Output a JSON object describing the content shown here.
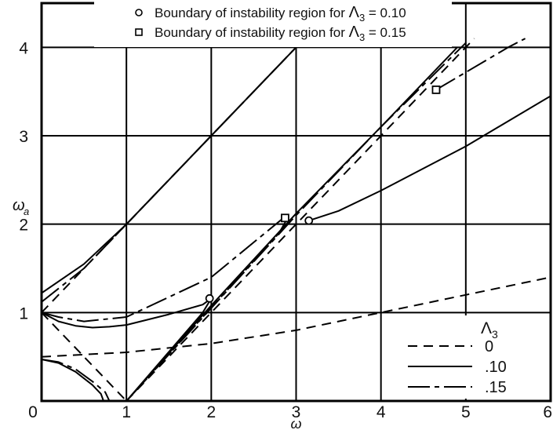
{
  "chart_data": {
    "type": "line",
    "title": "",
    "xlabel": "ω",
    "ylabel": "ω",
    "ylabel_sub": "a",
    "xlim": [
      0,
      6
    ],
    "ylim": [
      0,
      4.5
    ],
    "x_ticks": [
      "0",
      "1",
      "2",
      "3",
      "4",
      "5",
      "6"
    ],
    "y_ticks": [
      "1",
      "2",
      "3",
      "4"
    ],
    "grid": true,
    "annotations": [
      {
        "marker": "○",
        "text": "Boundary of instability region for ",
        "symbol": "Λ",
        "sub": "3",
        "value": " = 0.10"
      },
      {
        "marker": "□",
        "text": "Boundary of instability region for ",
        "symbol": "Λ",
        "sub": "3",
        "value": " = 0.15"
      }
    ],
    "legend": {
      "title_symbol": "Λ",
      "title_sub": "3",
      "placement": "bottom-right",
      "entries": [
        {
          "label": "0",
          "style": "dashed"
        },
        {
          "label": ".10",
          "style": "solid"
        },
        {
          "label": ".15",
          "style": "long-dash"
        }
      ]
    },
    "series": [
      {
        "group": "0",
        "style": "dashed",
        "points": [
          [
            0,
            1
          ],
          [
            1,
            2
          ],
          [
            2,
            3
          ],
          [
            3,
            4
          ],
          [
            3.2,
            4.2
          ]
        ]
      },
      {
        "group": "0",
        "style": "dashed",
        "points": [
          [
            0,
            1
          ],
          [
            1,
            0
          ]
        ]
      },
      {
        "group": "0",
        "style": "dashed",
        "points": [
          [
            1,
            0
          ],
          [
            2,
            1
          ],
          [
            3,
            2
          ],
          [
            4,
            3
          ],
          [
            5,
            4
          ],
          [
            5.1,
            4.1
          ]
        ]
      },
      {
        "group": "0",
        "style": "dashed",
        "points": [
          [
            0,
            0.5
          ],
          [
            1,
            0.55
          ],
          [
            2,
            0.65
          ],
          [
            3,
            0.8
          ],
          [
            4,
            1.0
          ],
          [
            5,
            1.2
          ],
          [
            6,
            1.4
          ]
        ]
      },
      {
        "group": ".10",
        "style": "solid",
        "points": [
          [
            0,
            1.22
          ],
          [
            0.5,
            1.55
          ],
          [
            1,
            2
          ],
          [
            2,
            3
          ],
          [
            3,
            4
          ],
          [
            3.1,
            4.1
          ]
        ]
      },
      {
        "group": ".10",
        "style": "solid",
        "points": [
          [
            0,
            1
          ],
          [
            0.2,
            0.9
          ],
          [
            0.4,
            0.85
          ],
          [
            0.6,
            0.83
          ],
          [
            0.8,
            0.84
          ],
          [
            1,
            0.86
          ],
          [
            1.5,
            0.98
          ],
          [
            1.9,
            1.09
          ],
          [
            2,
            1.16
          ]
        ]
      },
      {
        "group": ".10",
        "style": "solid",
        "points": [
          [
            0,
            0.47
          ],
          [
            0.2,
            0.43
          ],
          [
            0.4,
            0.33
          ],
          [
            0.6,
            0.18
          ],
          [
            0.7,
            0.08
          ],
          [
            0.73,
            0
          ]
        ]
      },
      {
        "group": ".10",
        "style": "solid",
        "points": [
          [
            2,
            1.16
          ],
          [
            1.9,
            1.0
          ],
          [
            1,
            0
          ],
          [
            2,
            1.08
          ],
          [
            3,
            2.12
          ],
          [
            4,
            3.1
          ],
          [
            4.9,
            4.0
          ]
        ]
      },
      {
        "group": ".10",
        "style": "solid",
        "points": [
          [
            3.15,
            2.04
          ],
          [
            3.5,
            2.15
          ],
          [
            4,
            2.38
          ],
          [
            5,
            2.88
          ],
          [
            6,
            3.45
          ]
        ]
      },
      {
        "group": ".15",
        "style": "long-dash",
        "points": [
          [
            0,
            1.12
          ],
          [
            0.5,
            1.5
          ],
          [
            1,
            2
          ],
          [
            2,
            3
          ],
          [
            3,
            4
          ],
          [
            3.1,
            4.1
          ]
        ]
      },
      {
        "group": ".15",
        "style": "long-dash",
        "points": [
          [
            0,
            1
          ],
          [
            0.2,
            0.95
          ],
          [
            0.5,
            0.9
          ],
          [
            1,
            0.95
          ],
          [
            2,
            1.4
          ],
          [
            2.85,
            2.07
          ]
        ]
      },
      {
        "group": ".15",
        "style": "long-dash",
        "points": [
          [
            0,
            0.47
          ],
          [
            0.2,
            0.44
          ],
          [
            0.4,
            0.36
          ],
          [
            0.6,
            0.22
          ],
          [
            0.75,
            0.1
          ],
          [
            0.8,
            0
          ]
        ]
      },
      {
        "group": ".15",
        "style": "long-dash",
        "points": [
          [
            2.9,
            2.07
          ],
          [
            2.8,
            1.9
          ],
          [
            1,
            0
          ],
          [
            2,
            1.05
          ],
          [
            3,
            2.1
          ],
          [
            4,
            3.1
          ],
          [
            5,
            4.05
          ]
        ]
      },
      {
        "group": ".15",
        "style": "long-dash",
        "points": [
          [
            4.65,
            3.52
          ],
          [
            5.5,
            4.0
          ],
          [
            5.7,
            4.1
          ]
        ]
      }
    ],
    "markers": [
      {
        "shape": "circle",
        "x": 1.98,
        "y": 1.16
      },
      {
        "shape": "circle",
        "x": 3.15,
        "y": 2.04
      },
      {
        "shape": "square",
        "x": 2.87,
        "y": 2.07
      },
      {
        "shape": "square",
        "x": 4.65,
        "y": 3.52
      }
    ]
  }
}
